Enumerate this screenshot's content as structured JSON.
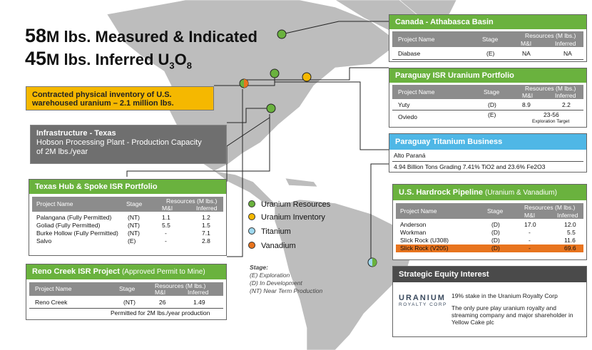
{
  "headline": {
    "line1_num": "58",
    "line1_text": "M lbs. Measured & Indicated",
    "line2_num": "45",
    "line2_text": "M lbs. Inferred U",
    "line2_sub3": "3",
    "line2_o": "O",
    "line2_sub8": "8"
  },
  "contracted": {
    "line1": "Contracted physical inventory of U.S.",
    "line2": "warehoused uranium – 2.1 million lbs."
  },
  "infrastructure": {
    "title": "Infrastructure - Texas",
    "line1": "Hobson Processing Plant - Production Capacity",
    "line2": "of 2M lbs./year"
  },
  "texas": {
    "title": "Texas Hub & Spoke ISR Portfolio",
    "col_project": "Project Name",
    "col_stage": "Stage",
    "col_resources": "Resources (M lbs.)",
    "col_mi": "M&I",
    "col_inferred": "Inferred",
    "rows": [
      {
        "name": "Palangana (Fully Permitted)",
        "stage": "(NT)",
        "mi": "1.1",
        "inf": "1.2"
      },
      {
        "name": "Goliad (Fully Permitted)",
        "stage": "(NT)",
        "mi": "5.5",
        "inf": "1.5"
      },
      {
        "name": "Burke Hollow (Fully Permitted)",
        "stage": "(NT)",
        "mi": "-",
        "inf": "7.1"
      },
      {
        "name": "Salvo",
        "stage": "(E)",
        "mi": "-",
        "inf": "2.8"
      }
    ]
  },
  "reno": {
    "title": "Reno Creek ISR Project",
    "title_sub": "(Approved Permit to Mine)",
    "col_project": "Project Name",
    "col_stage": "Stage",
    "col_resources": "Resources (M lbs.)",
    "col_mi": "M&I",
    "col_inferred": "Inferred",
    "row": {
      "name": "Reno Creek",
      "stage": "(NT)",
      "mi": "26",
      "inf": "1.49"
    },
    "footer": "Permitted for 2M lbs./year production"
  },
  "legend": {
    "uranium_resources": "Uranium Resources",
    "uranium_inventory": "Uranium Inventory",
    "titanium": "Titanium",
    "vanadium": "Vanadium"
  },
  "stage_note": {
    "title": "Stage:",
    "e": "(E) Exploration",
    "d": "(D) In Development",
    "nt": "(NT) Near Term Production"
  },
  "canada": {
    "title": "Canada - Athabasca Basin",
    "col_project": "Project Name",
    "col_stage": "Stage",
    "col_resources": "Resources (M lbs.)",
    "col_mi": "M&I",
    "col_inferred": "Inferred",
    "row": {
      "name": "Diabase",
      "stage": "(E)",
      "mi": "NA",
      "inf": "NA"
    }
  },
  "paraguay_isr": {
    "title": "Paraguay ISR Uranium Portfolio",
    "col_project": "Project Name",
    "col_stage": "Stage",
    "col_resources": "Resources (M lbs.)",
    "col_mi": "M&I",
    "col_inferred": "Inferred",
    "rows": [
      {
        "name": "Yuty",
        "stage": "(D)",
        "mi": "8.9",
        "inf": "2.2"
      },
      {
        "name": "Oviedo",
        "stage": "(E)",
        "range": "23-56",
        "target": "Exploration Target"
      }
    ]
  },
  "paraguay_ti": {
    "title": "Paraguay Titanium Business",
    "name": "Alto Paraná",
    "desc": "4.94 Billion Tons Grading 7.41% TiO2 and 23.6% Fe2O3"
  },
  "hardrock": {
    "title": "U.S. Hardrock Pipeline",
    "title_sub": "(Uranium & Vanadium)",
    "col_project": "Project Name",
    "col_stage": "Stage",
    "col_resources": "Resources (M lbs.)",
    "col_mi": "M&I",
    "col_inferred": "Inferred",
    "rows": [
      {
        "name": "Anderson",
        "stage": "(D)",
        "mi": "17.0",
        "inf": "12.0"
      },
      {
        "name": "Workman",
        "stage": "(D)",
        "mi": "-",
        "inf": "5.5"
      },
      {
        "name": "Slick Rock (U308)",
        "stage": "(D)",
        "mi": "-",
        "inf": "11.6"
      },
      {
        "name": "Slick Rock (V205)",
        "stage": "(D)",
        "mi": "-",
        "inf": "69.6"
      }
    ]
  },
  "equity": {
    "title": "Strategic Equity Interest",
    "logo_main": "URANIUM",
    "logo_sub": "ROYALTY CORP",
    "line1": "19% stake in the Uranium Royalty Corp",
    "line2": "The only pure play uranium royalty and streaming company and major shareholder in Yellow Cake plc"
  },
  "colors": {
    "green": "#6ab23e",
    "orange_bar": "#f5b800",
    "infra_gray": "#6f6f6f",
    "vanadium": "#e8741e",
    "titanium": "#9fd8ee",
    "light_blue_bar": "#4fb7e6",
    "inventory": "#f5b800",
    "uranium": "#6ab23e"
  }
}
